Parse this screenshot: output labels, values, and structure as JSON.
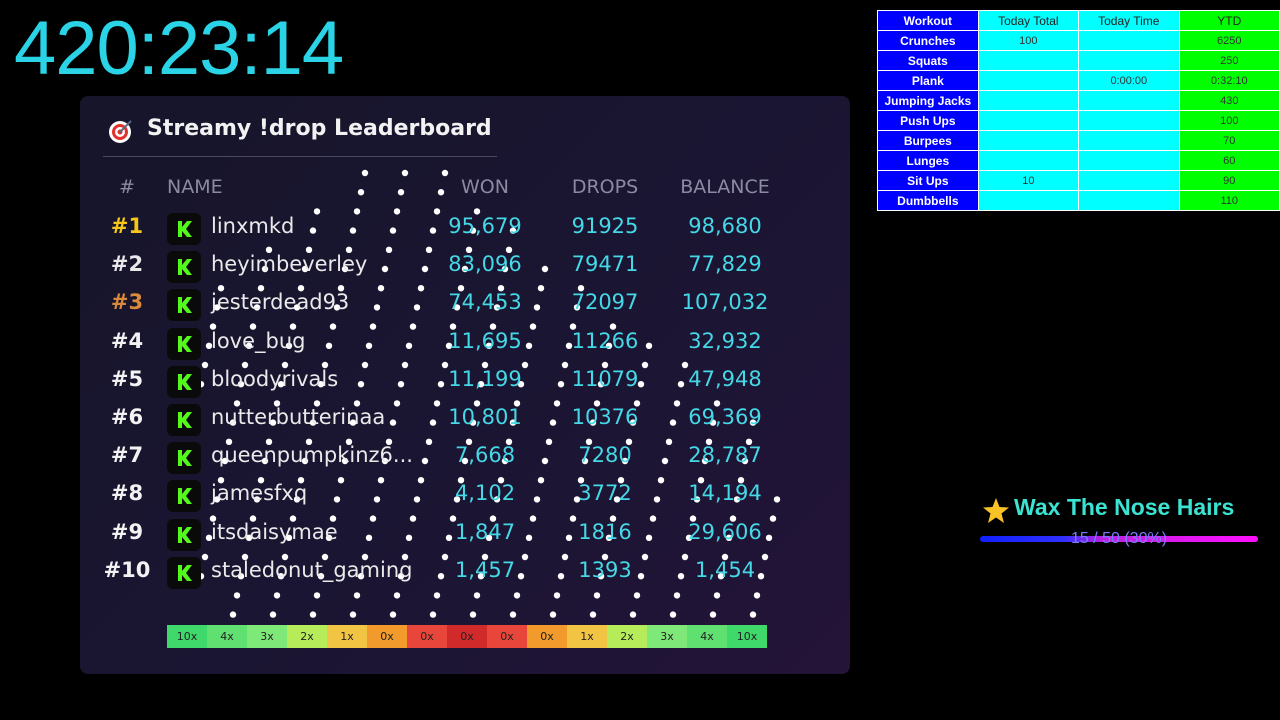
{
  "timer": "420:23:14",
  "leaderboard": {
    "title": "Streamy !drop Leaderboard",
    "headers": [
      "#",
      "NAME",
      "WON",
      "DROPS",
      "BALANCE"
    ],
    "rows": [
      [
        "#1",
        "linxmkd",
        "95,679",
        "91925",
        "98,680"
      ],
      [
        "#2",
        "heyimbeverley",
        "83,096",
        "79471",
        "77,829"
      ],
      [
        "#3",
        "jesterdead93",
        "74,453",
        "72097",
        "107,032"
      ],
      [
        "#4",
        "love_bug",
        "11,695",
        "11266",
        "32,932"
      ],
      [
        "#5",
        "bloodyrivals",
        "11,199",
        "11079",
        "47,948"
      ],
      [
        "#6",
        "nutterbutterinaa",
        "10,801",
        "10376",
        "69,369"
      ],
      [
        "#7",
        "queenpumpkinz6...",
        "7,668",
        "7280",
        "28,787"
      ],
      [
        "#8",
        "jamesfxq",
        "4,102",
        "3772",
        "14,194"
      ],
      [
        "#9",
        "itsdaisymae",
        "1,847",
        "1816",
        "29,606"
      ],
      [
        "#10",
        "staledonut_gaming",
        "1,457",
        "1393",
        "1,454"
      ]
    ],
    "multipliers": [
      "10x",
      "4x",
      "3x",
      "2x",
      "1x",
      "0x",
      "0x",
      "0x",
      "0x",
      "0x",
      "1x",
      "2x",
      "3x",
      "4x",
      "10x"
    ]
  },
  "workout": {
    "headers": [
      "Workout",
      "Today Total",
      "Today Time",
      "YTD"
    ],
    "rows": [
      [
        "Crunches",
        "100",
        null,
        "6250"
      ],
      [
        "Squats",
        null,
        null,
        "250"
      ],
      [
        "Plank",
        null,
        "0:00:00",
        "0:32:10"
      ],
      [
        "Jumping Jacks",
        null,
        null,
        "430"
      ],
      [
        "Push Ups",
        null,
        null,
        "100"
      ],
      [
        "Burpees",
        null,
        null,
        "70"
      ],
      [
        "Lunges",
        null,
        null,
        "60"
      ],
      [
        "Sit Ups",
        "10",
        null,
        "90"
      ],
      [
        "Dumbbells",
        null,
        null,
        "110"
      ]
    ]
  },
  "goal": {
    "title": "Wax The Nose Hairs",
    "progress": "15 / 50 (30%)"
  }
}
